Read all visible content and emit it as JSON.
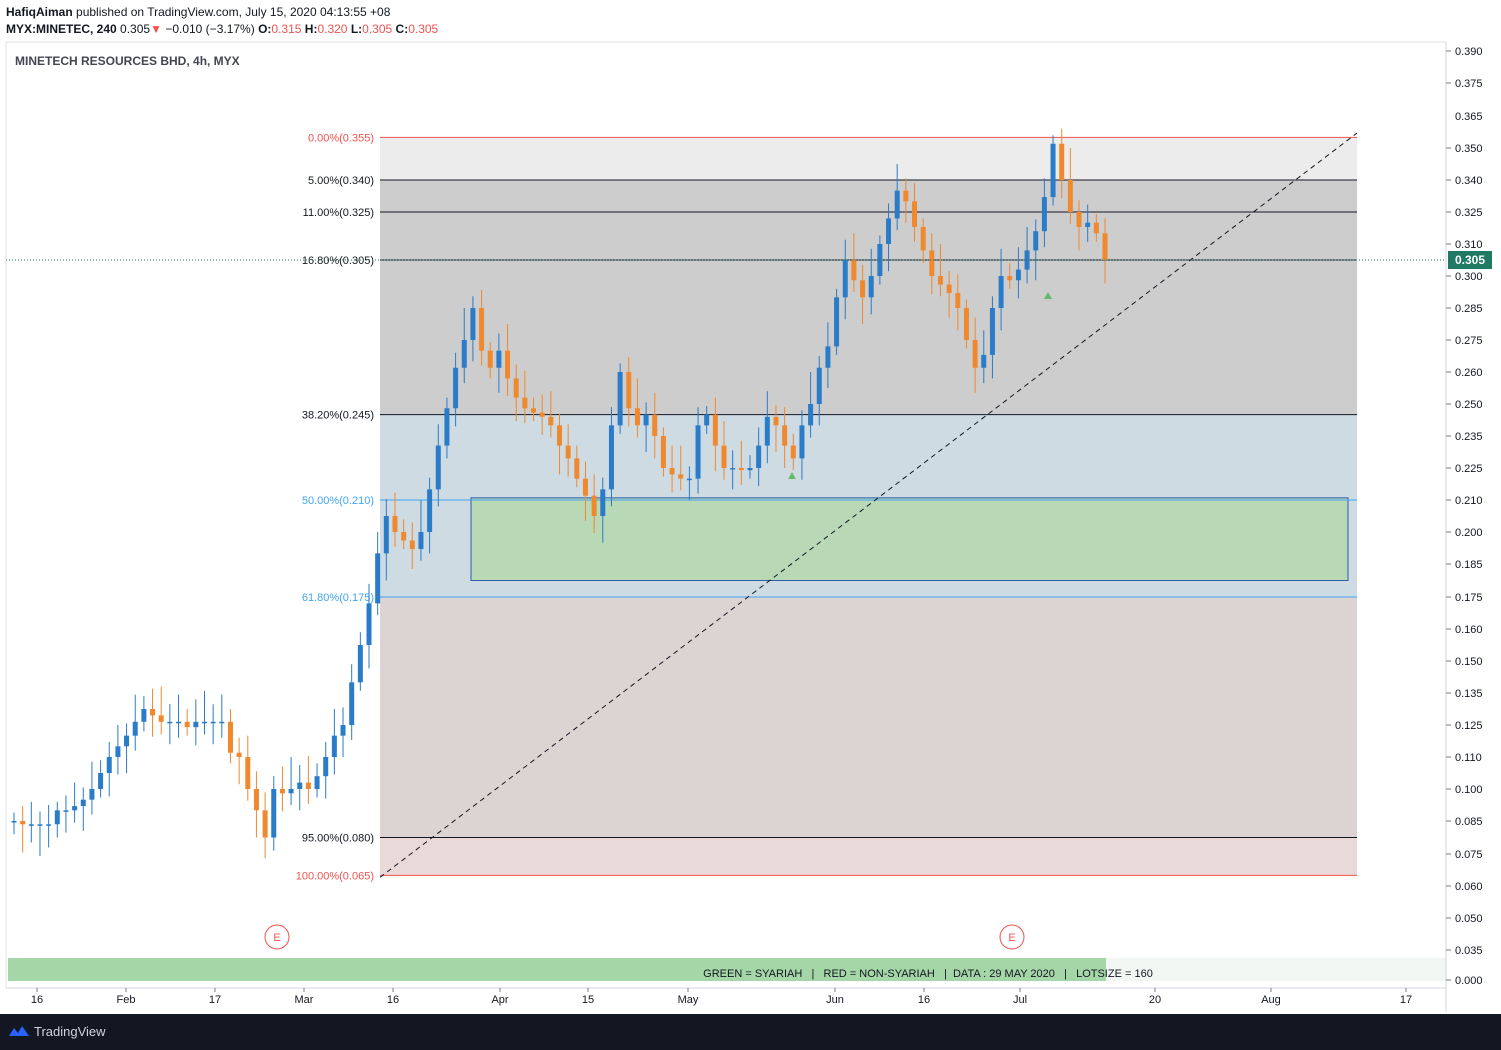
{
  "header": {
    "author": "HafiqAiman",
    "published_text": "published on TradingView.com, July 15, 2020 04:13:55 +08",
    "symbol": "MYX:MINETEC, 240",
    "last": "0.305",
    "change": "−0.010 (−3.17%)",
    "o_label": "O:",
    "o_value": "0.315",
    "h_label": "H:",
    "h_value": "0.320",
    "l_label": "L:",
    "l_value": "0.305",
    "c_label": "C:",
    "c_value": "0.305"
  },
  "chart_title": "MINETECH RESOURCES BHD, 4h, MYX",
  "footer": {
    "brand": "TradingView"
  },
  "colors": {
    "up": "#2a7bc8",
    "down": "#f0892e",
    "last_price_bg": "#1f7a64",
    "fib_red": "#ef5350",
    "fib_blue": "#42a5f5",
    "zone": "#b8d8b6",
    "legend_band": "#a5d6a7"
  },
  "chart_data": {
    "type": "candlestick",
    "price_axis": {
      "min": 0.0,
      "max": 0.39,
      "ticks": [
        "0.390",
        "0.375",
        "0.350",
        "0.340",
        "0.325",
        "0.310",
        "0.300",
        "0.285",
        "0.275",
        "0.260",
        "0.250",
        "0.235",
        "0.225",
        "0.210",
        "0.200",
        "0.185",
        "0.175",
        "0.160",
        "0.150",
        "0.135",
        "0.125",
        "0.110",
        "0.100",
        "0.085",
        "0.075",
        "0.060",
        "0.050",
        "0.035",
        "0.000"
      ]
    },
    "time_axis_labels": [
      "16",
      "Feb",
      "17",
      "Mar",
      "16",
      "Apr",
      "15",
      "May",
      "Jun",
      "16",
      "Jul",
      "20",
      "Aug",
      "17"
    ],
    "last_price": "0.305",
    "fibonacci": [
      {
        "label": "0.00%(0.355)",
        "price": 0.355,
        "color": "red"
      },
      {
        "label": "5.00%(0.340)",
        "price": 0.34,
        "color": "black"
      },
      {
        "label": "11.00%(0.325)",
        "price": 0.325,
        "color": "black"
      },
      {
        "label": "16.80%(0.305)",
        "price": 0.305,
        "color": "black"
      },
      {
        "label": "38.20%(0.245)",
        "price": 0.245,
        "color": "black"
      },
      {
        "label": "50.00%(0.210)",
        "price": 0.21,
        "color": "blue"
      },
      {
        "label": "61.80%(0.175)",
        "price": 0.175,
        "color": "blue"
      },
      {
        "label": "95.00%(0.080)",
        "price": 0.08,
        "color": "black"
      },
      {
        "label": "100.00%(0.065)",
        "price": 0.065,
        "color": "red"
      }
    ],
    "zone": {
      "top": 0.211,
      "bottom": 0.18
    },
    "events": [
      "E",
      "E"
    ],
    "legend_note": "GREEN = SYARIAH   |   RED = NON-SYARIAH   |  DATA : 29 MAY 2020   |   LOTSIZE = 160",
    "price_path": [
      0.085,
      0.084,
      0.084,
      0.084,
      0.084,
      0.09,
      0.09,
      0.092,
      0.095,
      0.1,
      0.105,
      0.11,
      0.115,
      0.12,
      0.126,
      0.13,
      0.128,
      0.126,
      0.126,
      0.126,
      0.124,
      0.126,
      0.126,
      0.126,
      0.126,
      0.112,
      0.11,
      0.1,
      0.09,
      0.08,
      0.1,
      0.098,
      0.1,
      0.102,
      0.1,
      0.104,
      0.11,
      0.12,
      0.125,
      0.14,
      0.155,
      0.172,
      0.19,
      0.205,
      0.2,
      0.196,
      0.192,
      0.2,
      0.215,
      0.232,
      0.248,
      0.262,
      0.275,
      0.285,
      0.27,
      0.262,
      0.27,
      0.258,
      0.252,
      0.248,
      0.246,
      0.244,
      0.24,
      0.232,
      0.228,
      0.22,
      0.212,
      0.205,
      0.215,
      0.24,
      0.26,
      0.248,
      0.24,
      0.245,
      0.235,
      0.225,
      0.222,
      0.22,
      0.22,
      0.24,
      0.245,
      0.232,
      0.225,
      0.225,
      0.224,
      0.225,
      0.232,
      0.244,
      0.24,
      0.232,
      0.228,
      0.24,
      0.25,
      0.262,
      0.272,
      0.29,
      0.305,
      0.298,
      0.29,
      0.3,
      0.31,
      0.322,
      0.335,
      0.33,
      0.318,
      0.308,
      0.3,
      0.296,
      0.292,
      0.285,
      0.275,
      0.262,
      0.268,
      0.285,
      0.3,
      0.298,
      0.302,
      0.308,
      0.316,
      0.332,
      0.352,
      0.34,
      0.325,
      0.318,
      0.32,
      0.315,
      0.305
    ]
  }
}
